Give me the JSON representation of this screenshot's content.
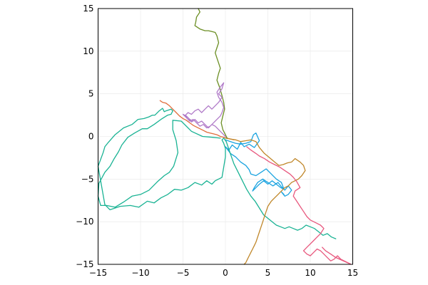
{
  "chart_data": {
    "type": "line",
    "title": "",
    "xlabel": "",
    "ylabel": "",
    "xlim": [
      -15,
      15
    ],
    "ylim": [
      -15,
      15
    ],
    "grid": true,
    "legend": "none",
    "aspect": "equal",
    "xticks": [
      -15,
      -10,
      -5,
      0,
      5,
      10,
      15
    ],
    "yticks": [
      -15,
      -10,
      -5,
      0,
      5,
      10,
      15
    ],
    "xtick_labels": [
      "−15",
      "−10",
      "−5",
      "0",
      "5",
      "10",
      "15"
    ],
    "ytick_labels": [
      "−15",
      "−10",
      "−5",
      "0",
      "5",
      "10",
      "15"
    ],
    "series": [
      {
        "color": "#1aa3e0",
        "x": [
          0,
          0.6,
          1.2,
          1.8,
          2.4,
          3.0,
          3.3,
          3.6,
          4.0,
          3.4,
          2.8,
          2.2,
          1.8,
          1.4,
          0.8,
          0.4,
          0.0,
          0.6,
          1.2,
          1.8,
          2.4,
          2.8,
          3.0,
          3.6,
          4.2,
          4.8,
          5.4,
          6.0,
          6.6,
          6.9,
          6.5,
          6.0,
          5.5,
          5.0,
          4.5,
          4.0,
          3.6,
          3.2,
          3.4,
          3.8,
          4.4,
          5.0,
          5.6,
          6.2,
          6.6,
          7.0,
          7.4,
          7.8,
          7.4,
          7.0,
          6.6,
          6.9
        ],
        "y": [
          -0.4,
          -0.6,
          -0.8,
          -0.9,
          -0.8,
          -0.6,
          0.2,
          0.4,
          -0.5,
          -1.3,
          -0.9,
          -1.2,
          -0.7,
          -1.5,
          -1.0,
          -1.6,
          -1.2,
          -2.0,
          -2.4,
          -3.0,
          -3.4,
          -3.9,
          -4.4,
          -4.6,
          -4.2,
          -3.8,
          -4.4,
          -5.0,
          -5.4,
          -6.2,
          -6.0,
          -5.6,
          -5.2,
          -5.6,
          -5.2,
          -5.6,
          -6.0,
          -6.4,
          -6.0,
          -5.4,
          -5.0,
          -5.4,
          -5.8,
          -5.4,
          -5.9,
          -6.3,
          -5.8,
          -6.3,
          -6.8,
          -7.0,
          -6.5,
          -6.8
        ]
      },
      {
        "color": "#e06b3a",
        "x": [
          -7.7,
          -7.4,
          -7.0,
          -6.6,
          -6.2,
          -5.8,
          -5.4,
          -5.0,
          -4.6,
          -4.2,
          -3.8,
          -3.4,
          -3.0,
          -2.6,
          -2.2,
          -1.8,
          -1.4,
          -1.0,
          -0.6,
          -0.2,
          0.2,
          0.6,
          1.0
        ],
        "y": [
          4.2,
          4.0,
          3.9,
          3.6,
          3.2,
          2.8,
          2.4,
          2.1,
          1.9,
          1.6,
          1.3,
          1.1,
          0.9,
          0.7,
          0.5,
          0.4,
          0.3,
          0.2,
          0.0,
          -0.1,
          -0.2,
          -0.3,
          -0.4
        ]
      },
      {
        "color": "#1ab394",
        "x": [
          -0.6,
          -1.5,
          -2.7,
          -4.0,
          -5.2,
          -6.2,
          -6.2,
          -5.8,
          -5.6,
          -6.1,
          -6.6,
          -7.2,
          -8.0,
          -9.0,
          -10.0,
          -11.0,
          -12.0,
          -13.0,
          -14.0,
          -14.7,
          -15.0,
          -14.9,
          -14.2,
          -13.6,
          -13.1,
          -12.6,
          -12.2,
          -11.5,
          -10.7,
          -9.8,
          -9.2,
          -8.4,
          -7.6,
          -6.8,
          -6.4,
          -6.2,
          -6.4,
          -7.0,
          -7.2,
          -7.4,
          -7.8,
          -8.3,
          -8.6,
          -9.0,
          -9.6,
          -10.3,
          -11.0,
          -12.0,
          -13.0,
          -13.8,
          -14.2,
          -14.4,
          -15.0,
          -14.2,
          -13.6,
          -12.4,
          -11.2,
          -10.2,
          -9.2,
          -8.4,
          -7.6,
          -6.8,
          -6.0,
          -5.2,
          -4.4,
          -3.6,
          -2.8,
          -2.2,
          -1.6,
          -1.2,
          -0.8,
          -0.4,
          -0.2,
          0.0,
          0.0,
          -0.2,
          -0.4,
          -0.2,
          0.1,
          0.5,
          1.0,
          1.5,
          2.0,
          2.5,
          3.0,
          3.5,
          4.0,
          4.5,
          5.0,
          5.5,
          6.0,
          6.5,
          7.0,
          7.5,
          8.0,
          8.5,
          9.0,
          9.5,
          10.0,
          10.5,
          11.0,
          11.5,
          12.0,
          12.5,
          13.0
        ],
        "y": [
          -0.2,
          -0.1,
          0.0,
          0.6,
          1.8,
          1.9,
          0.8,
          -0.5,
          -1.9,
          -3.5,
          -4.2,
          -4.6,
          -5.3,
          -6.3,
          -6.8,
          -7.0,
          -7.7,
          -8.3,
          -8.1,
          -8.1,
          -7.0,
          -5.5,
          -4.2,
          -3.5,
          -2.6,
          -1.8,
          -1.0,
          -0.1,
          0.4,
          0.9,
          0.9,
          1.4,
          2.0,
          2.5,
          2.6,
          3.0,
          3.2,
          3.0,
          2.9,
          3.3,
          3.0,
          2.5,
          2.5,
          2.3,
          2.1,
          2.0,
          1.4,
          1.0,
          0.2,
          -0.7,
          -1.2,
          -1.9,
          -3.5,
          -8.0,
          -8.6,
          -8.2,
          -8.1,
          -8.3,
          -7.6,
          -7.8,
          -7.2,
          -6.8,
          -6.2,
          -6.3,
          -6.0,
          -5.4,
          -5.7,
          -5.2,
          -5.6,
          -5.2,
          -5.0,
          -4.8,
          -3.6,
          -2.4,
          -1.4,
          -0.8,
          -0.4,
          -0.2,
          -0.6,
          -1.8,
          -3.2,
          -4.2,
          -5.2,
          -6.2,
          -7.0,
          -7.6,
          -8.4,
          -9.2,
          -9.6,
          -10.0,
          -10.4,
          -10.6,
          -10.8,
          -10.6,
          -10.8,
          -11.0,
          -10.8,
          -10.4,
          -10.6,
          -10.8,
          -11.2,
          -11.6,
          -11.4,
          -11.8,
          -12.0
        ]
      },
      {
        "color": "#c0872a",
        "x": [
          0.0,
          0.6,
          1.2,
          1.8,
          2.4,
          3.0,
          3.6,
          4.0,
          4.6,
          5.2,
          5.8,
          6.3,
          6.8,
          7.3,
          7.8,
          8.2,
          8.8,
          9.2,
          9.4,
          9.0,
          8.6,
          8.2,
          7.8,
          7.4,
          7.0,
          6.6,
          6.2,
          5.8,
          5.4,
          5.0,
          4.8,
          4.6,
          4.4,
          4.2,
          4.0,
          3.8,
          3.6,
          3.4,
          3.2,
          3.0,
          2.8,
          2.6,
          2.4,
          2.2
        ],
        "y": [
          -0.2,
          -0.3,
          -0.4,
          -0.6,
          -0.5,
          -0.4,
          -0.6,
          -1.3,
          -2.0,
          -2.5,
          -3.0,
          -3.4,
          -3.3,
          -3.1,
          -3.0,
          -2.6,
          -3.0,
          -3.4,
          -4.0,
          -4.6,
          -5.0,
          -5.2,
          -5.4,
          -5.8,
          -6.0,
          -6.4,
          -6.8,
          -7.2,
          -7.6,
          -8.2,
          -8.8,
          -9.4,
          -10.0,
          -10.6,
          -11.2,
          -11.8,
          -12.4,
          -12.8,
          -13.2,
          -13.6,
          -14.0,
          -14.4,
          -14.8,
          -15.0
        ]
      },
      {
        "color": "#e8587e",
        "x": [
          2.5,
          3.0,
          3.6,
          4.0,
          4.6,
          5.2,
          5.8,
          6.4,
          7.0,
          7.6,
          8.0,
          8.4,
          8.8,
          8.2,
          8.0,
          8.4,
          8.8,
          9.2,
          9.6,
          10.0,
          10.4,
          10.8,
          11.2,
          11.6,
          11.2,
          10.8,
          10.4,
          10.0,
          9.6,
          9.2,
          9.6,
          10.0,
          10.4,
          10.8,
          11.2,
          11.6,
          12.0,
          12.4,
          12.8,
          13.2,
          13.6,
          14.0,
          14.4,
          14.8,
          13.0,
          12.4,
          11.8,
          11.4
        ],
        "y": [
          -1.2,
          -1.6,
          -2.0,
          -2.3,
          -2.6,
          -3.0,
          -3.3,
          -3.6,
          -4.0,
          -4.4,
          -4.8,
          -5.3,
          -6.0,
          -6.4,
          -7.0,
          -7.6,
          -8.2,
          -8.8,
          -9.4,
          -9.8,
          -10.0,
          -10.2,
          -10.4,
          -10.8,
          -11.4,
          -11.8,
          -12.2,
          -12.6,
          -13.0,
          -13.4,
          -13.8,
          -14.0,
          -13.6,
          -13.2,
          -13.4,
          -13.8,
          -14.2,
          -14.6,
          -14.4,
          -14.0,
          -14.4,
          -14.6,
          -14.8,
          -15.0,
          -14.2,
          -13.8,
          -13.4,
          -13.0
        ]
      },
      {
        "color": "#6b8e23",
        "x": [
          -3.2,
          -3.0,
          -3.4,
          -3.5,
          -3.6,
          -3.0,
          -2.4,
          -2.0,
          -1.6,
          -1.2,
          -1.0,
          -0.8,
          -1.0,
          -1.2,
          -1.0,
          -0.8,
          -0.6,
          -0.8,
          -1.0,
          -0.7,
          -0.4,
          -0.2,
          -0.1,
          -0.3,
          -0.5,
          -0.3,
          0.0,
          0.2
        ],
        "y": [
          15.0,
          14.6,
          14.0,
          13.4,
          13.0,
          12.6,
          12.4,
          12.4,
          12.3,
          12.2,
          11.8,
          11.0,
          10.4,
          9.8,
          9.2,
          8.6,
          8.0,
          7.4,
          6.6,
          5.8,
          4.8,
          4.0,
          3.2,
          2.4,
          1.6,
          0.8,
          0.2,
          -0.2
        ]
      },
      {
        "color": "#b07ac8",
        "x": [
          0.0,
          -0.4,
          -0.8,
          -1.2,
          -1.6,
          -2.0,
          -2.4,
          -2.8,
          -3.2,
          -3.6,
          -4.0,
          -4.4,
          -4.8,
          -4.4,
          -4.0,
          -3.6,
          -3.2,
          -2.8,
          -2.4,
          -2.0,
          -1.6,
          -1.2,
          -0.8,
          -0.4,
          -0.8,
          -0.4,
          -0.2,
          -0.6,
          -1.0,
          -0.8,
          -0.4,
          -0.2,
          -0.4,
          -0.6,
          -1.0,
          -1.4,
          -1.8,
          -2.2,
          -2.6,
          -3.0,
          -3.4,
          -3.8,
          -4.2,
          -4.6,
          -5.0,
          -4.6,
          -4.2,
          -3.8
        ],
        "y": [
          0.0,
          0.4,
          0.8,
          1.2,
          1.4,
          1.0,
          1.4,
          1.8,
          1.6,
          2.0,
          1.7,
          2.2,
          2.4,
          2.8,
          2.6,
          3.0,
          3.2,
          2.8,
          3.2,
          3.6,
          3.2,
          3.6,
          4.0,
          4.6,
          5.0,
          5.6,
          6.3,
          5.8,
          5.2,
          4.6,
          4.0,
          3.4,
          2.8,
          2.4,
          2.0,
          1.6,
          1.2,
          1.0,
          1.4,
          1.2,
          1.6,
          2.0,
          1.8,
          2.2,
          2.6,
          2.4,
          2.0,
          1.8
        ]
      }
    ]
  }
}
